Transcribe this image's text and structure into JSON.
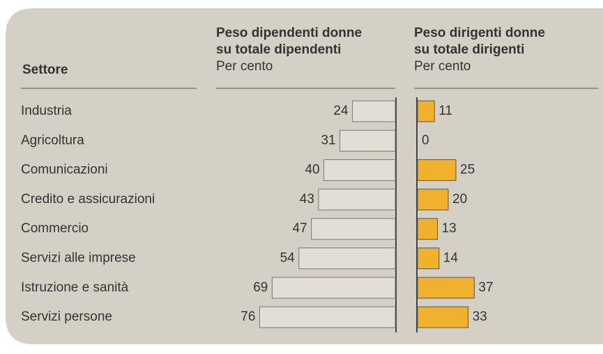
{
  "chart_data": {
    "type": "bar",
    "category_header": "Settore",
    "categories": [
      "Industria",
      "Agricoltura",
      "Comunicazioni",
      "Credito e assicurazioni",
      "Commercio",
      "Servizi alle imprese",
      "Istruzione e sanità",
      "Servizi persone"
    ],
    "series": [
      {
        "name": "Peso dipendenti donne\nsu totale dipendenti",
        "unit": "Per cento",
        "color": "#e2ded5",
        "values": [
          24,
          31,
          40,
          43,
          47,
          54,
          69,
          76
        ]
      },
      {
        "name": "Peso dirigenti donne\nsu totale dirigenti",
        "unit": "Per cento",
        "color": "#f0b12e",
        "values": [
          11,
          0,
          25,
          20,
          13,
          14,
          37,
          33
        ]
      }
    ]
  }
}
